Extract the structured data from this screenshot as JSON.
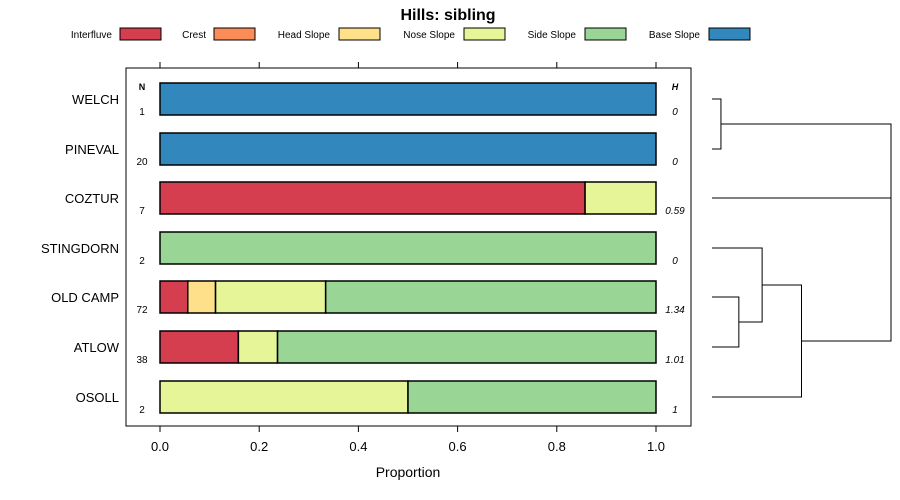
{
  "chart_data": {
    "type": "bar",
    "subtype": "stacked-horizontal-proportion",
    "title": "Hills: sibling",
    "xlabel": "Proportion",
    "ylabel": "",
    "xlim": [
      -0.07,
      1.07
    ],
    "xticks": [
      0,
      0.2,
      0.4,
      0.6,
      0.8,
      1
    ],
    "xtick_labels": [
      "0.0",
      "0.2",
      "0.4",
      "0.6",
      "0.8",
      "1.0"
    ],
    "left_header": "N",
    "right_header": "H",
    "legend": [
      {
        "name": "Interfluve",
        "color": "#d53e4f"
      },
      {
        "name": "Crest",
        "color": "#fc8d59"
      },
      {
        "name": "Head Slope",
        "color": "#fee08b"
      },
      {
        "name": "Nose Slope",
        "color": "#e6f598"
      },
      {
        "name": "Side Slope",
        "color": "#99d594"
      },
      {
        "name": "Base Slope",
        "color": "#3288bd"
      }
    ],
    "categories": [
      "WELCH",
      "PINEVAL",
      "COZTUR",
      "STINGDORN",
      "OLD CAMP",
      "ATLOW",
      "OSOLL"
    ],
    "n_labels": [
      "1",
      "20",
      "7",
      "2",
      "72",
      "38",
      "2"
    ],
    "h_labels": [
      "0",
      "0",
      "0.59",
      "0",
      "1.34",
      "1.01",
      "1"
    ],
    "series": [
      {
        "name": "Interfluve",
        "values": [
          0,
          0,
          0.857,
          0,
          0.056,
          0.158,
          0
        ]
      },
      {
        "name": "Crest",
        "values": [
          0,
          0,
          0,
          0,
          0,
          0,
          0
        ]
      },
      {
        "name": "Head Slope",
        "values": [
          0,
          0,
          0,
          0,
          0.056,
          0,
          0
        ]
      },
      {
        "name": "Nose Slope",
        "values": [
          0,
          0,
          0.143,
          0,
          0.222,
          0.079,
          0.5
        ]
      },
      {
        "name": "Side Slope",
        "values": [
          0,
          0,
          0,
          1,
          0.666,
          0.763,
          0.5
        ]
      },
      {
        "name": "Base Slope",
        "values": [
          1,
          1,
          0,
          0,
          0,
          0,
          0
        ]
      }
    ],
    "dendrogram": {
      "merges": [
        {
          "left": "WELCH",
          "right": "PINEVAL",
          "height": 0.05
        },
        {
          "left": "OLD CAMP",
          "right": "ATLOW",
          "height": 0.15
        },
        {
          "left": "STINGDORN",
          "right": "cluster:OLD CAMP+ATLOW",
          "height": 0.28
        },
        {
          "left": "cluster:STINGDORN+OLD CAMP+ATLOW",
          "right": "OSOLL",
          "height": 0.5
        },
        {
          "left": "cluster:WELCH+PINEVAL",
          "right": "COZTUR",
          "height": 1.0
        },
        {
          "left": "cluster:WELCH+PINEVAL+COZTUR",
          "right": "cluster:STINGDORN+OLD CAMP+ATLOW+OSOLL",
          "height": 1.0
        }
      ]
    }
  }
}
